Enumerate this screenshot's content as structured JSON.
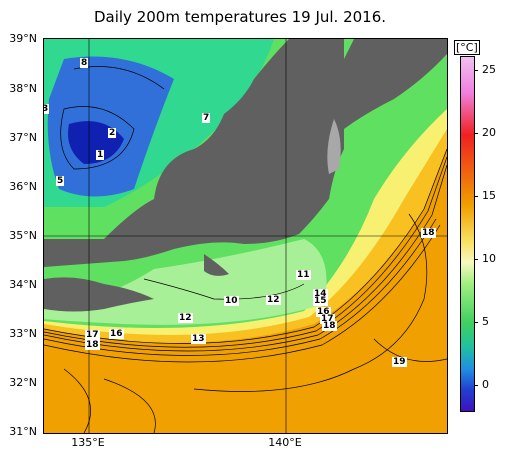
{
  "title": "Daily 200m temperatures 19 Jul. 2016.",
  "lat_labels": [
    "39°N",
    "38°N",
    "37°N",
    "36°N",
    "35°N",
    "34°N",
    "33°N",
    "32°N",
    "31°N"
  ],
  "lon_labels": [
    "135°E",
    "140°E"
  ],
  "colorbar": {
    "unit": "[°C]",
    "ticks": [
      "25",
      "20",
      "15",
      "10",
      "5",
      "0"
    ],
    "range": [
      -2,
      26
    ]
  },
  "isotherm_labels": [
    "8",
    "3",
    "2",
    "1",
    "5",
    "7",
    "18",
    "11",
    "14",
    "15",
    "16",
    "17",
    "18",
    "10",
    "12",
    "12",
    "13",
    "19",
    "16",
    "17",
    "18"
  ],
  "colors": {
    "land": "#606060",
    "cold": "#2040c0",
    "mid": "#40d060",
    "warm": "#f0a000"
  }
}
